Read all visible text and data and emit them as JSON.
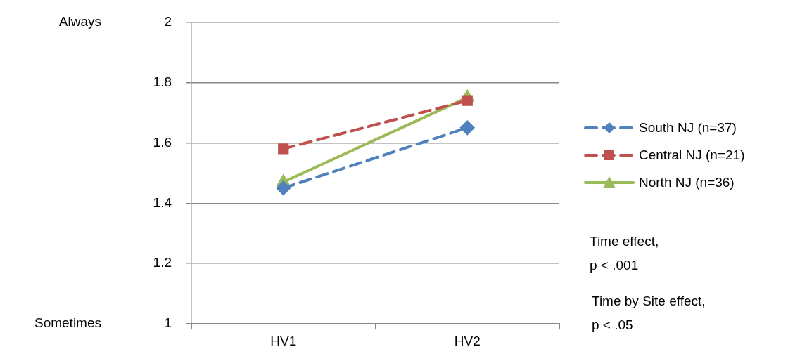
{
  "chart_data": {
    "type": "line",
    "categories": [
      "HV1",
      "HV2"
    ],
    "series": [
      {
        "name": "South NJ (n=37)",
        "color": "#4f81bd",
        "values": [
          1.45,
          1.65
        ],
        "marker": "diamond",
        "line_style": "dashed"
      },
      {
        "name": "Central NJ (n=21)",
        "color": "#c0504d",
        "values": [
          1.58,
          1.74
        ],
        "marker": "square",
        "line_style": "dashed"
      },
      {
        "name": "North NJ (n=36)",
        "color": "#9bbb59",
        "values": [
          1.47,
          1.75
        ],
        "marker": "triangle",
        "line_style": "solid"
      }
    ],
    "ylim": [
      1,
      2
    ],
    "yticks": [
      1,
      1.2,
      1.4,
      1.6,
      1.8,
      2
    ],
    "grid": "y",
    "legend": "right",
    "annotations": [
      "Always",
      "Sometimes",
      "Time effect,\np < .001",
      "Time by Site effect,\np < .05"
    ]
  }
}
